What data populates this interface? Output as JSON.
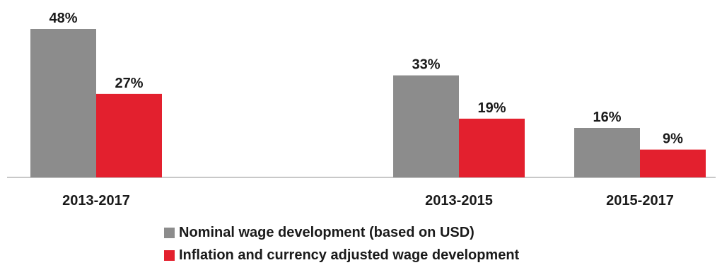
{
  "chart_data": {
    "type": "bar",
    "categories": [
      "2013-2017",
      "2013-2015",
      "2015-2017"
    ],
    "series": [
      {
        "name": "Nominal wage development (based on USD)",
        "values": [
          48,
          33,
          16
        ],
        "color": "#8c8c8c"
      },
      {
        "name": "Inflation and currency adjusted wage development",
        "values": [
          27,
          19,
          9
        ],
        "color": "#e3202e"
      }
    ],
    "value_labels": [
      [
        "48%",
        "33%",
        "16%"
      ],
      [
        "27%",
        "19%",
        "9%"
      ]
    ],
    "unit": "%",
    "ylim": [
      0,
      48
    ],
    "grid": false,
    "legend_position": "bottom"
  }
}
